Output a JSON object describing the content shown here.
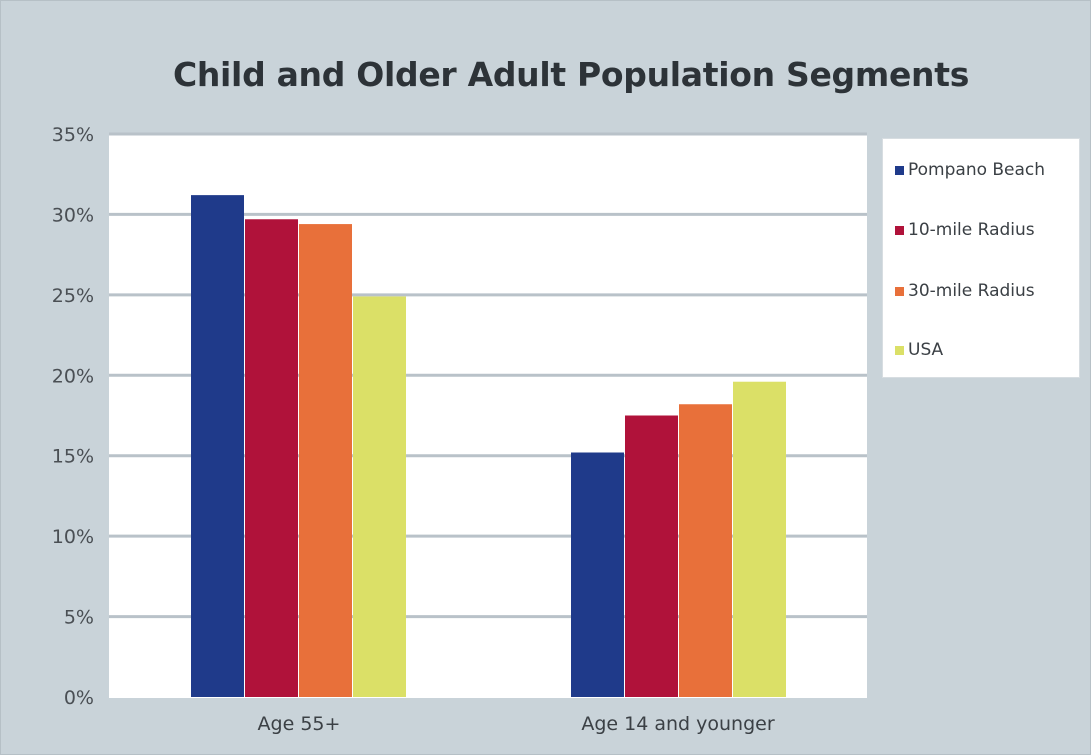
{
  "chart_data": {
    "type": "bar",
    "title": "Child and Older Adult Population Segments",
    "categories": [
      "Age 55+",
      "Age 14 and younger"
    ],
    "series": [
      {
        "name": "Pompano Beach",
        "color": "#1f3a8a",
        "values": [
          31.2,
          15.2
        ]
      },
      {
        "name": "10-mile Radius",
        "color": "#b0123a",
        "values": [
          29.7,
          17.5
        ]
      },
      {
        "name": "30-mile Radius",
        "color": "#e8703a",
        "values": [
          29.4,
          18.2
        ]
      },
      {
        "name": "USA",
        "color": "#dbe067",
        "values": [
          24.9,
          19.6
        ]
      }
    ],
    "ylim": [
      0,
      35
    ],
    "yticks": [
      "0%",
      "5%",
      "10%",
      "15%",
      "20%",
      "25%",
      "30%",
      "35%"
    ],
    "ytick_values": [
      0,
      5,
      10,
      15,
      20,
      25,
      30,
      35
    ],
    "grid": true,
    "legend_position": "right"
  }
}
